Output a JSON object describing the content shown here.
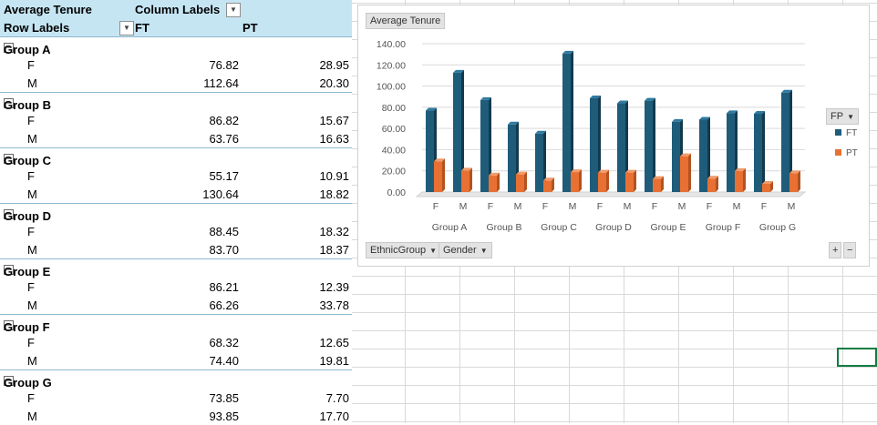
{
  "pivot": {
    "header1": {
      "label": "Average Tenure",
      "col_labels": "Column Labels"
    },
    "header2": {
      "row_labels": "Row Labels",
      "ft": "FT",
      "pt": "PT"
    },
    "groups": [
      {
        "name": "Group A",
        "rows": [
          {
            "g": "F",
            "ft": "76.82",
            "pt": "28.95"
          },
          {
            "g": "M",
            "ft": "112.64",
            "pt": "20.30"
          }
        ]
      },
      {
        "name": "Group B",
        "rows": [
          {
            "g": "F",
            "ft": "86.82",
            "pt": "15.67"
          },
          {
            "g": "M",
            "ft": "63.76",
            "pt": "16.63"
          }
        ]
      },
      {
        "name": "Group C",
        "rows": [
          {
            "g": "F",
            "ft": "55.17",
            "pt": "10.91"
          },
          {
            "g": "M",
            "ft": "130.64",
            "pt": "18.82"
          }
        ]
      },
      {
        "name": "Group D",
        "rows": [
          {
            "g": "F",
            "ft": "88.45",
            "pt": "18.32"
          },
          {
            "g": "M",
            "ft": "83.70",
            "pt": "18.37"
          }
        ]
      },
      {
        "name": "Group E",
        "rows": [
          {
            "g": "F",
            "ft": "86.21",
            "pt": "12.39"
          },
          {
            "g": "M",
            "ft": "66.26",
            "pt": "33.78"
          }
        ]
      },
      {
        "name": "Group F",
        "rows": [
          {
            "g": "F",
            "ft": "68.32",
            "pt": "12.65"
          },
          {
            "g": "M",
            "ft": "74.40",
            "pt": "19.81"
          }
        ]
      },
      {
        "name": "Group G",
        "rows": [
          {
            "g": "F",
            "ft": "73.85",
            "pt": "7.70"
          },
          {
            "g": "M",
            "ft": "93.85",
            "pt": "17.70"
          }
        ]
      }
    ]
  },
  "chart": {
    "title_button": "Average Tenure",
    "legend_button": "FP",
    "filter_buttons": [
      "EthnicGroup",
      "Gender"
    ],
    "zoom_plus": "+",
    "zoom_minus": "−",
    "colors": {
      "FT": "#1f5c7a",
      "PT": "#e87033"
    }
  },
  "chart_data": {
    "type": "bar",
    "categories": [
      "F",
      "M",
      "F",
      "M",
      "F",
      "M",
      "F",
      "M",
      "F",
      "M",
      "F",
      "M",
      "F",
      "M"
    ],
    "group_labels": [
      "Group A",
      "Group B",
      "Group C",
      "Group D",
      "Group E",
      "Group F",
      "Group G"
    ],
    "series": [
      {
        "name": "FT",
        "values": [
          76.82,
          112.64,
          86.82,
          63.76,
          55.17,
          130.64,
          88.45,
          83.7,
          86.21,
          66.26,
          68.32,
          74.4,
          73.85,
          93.85
        ]
      },
      {
        "name": "PT",
        "values": [
          28.95,
          20.3,
          15.67,
          16.63,
          10.91,
          18.82,
          18.32,
          18.37,
          12.39,
          33.78,
          12.65,
          19.81,
          7.7,
          17.7
        ]
      }
    ],
    "yticks": [
      "0.00",
      "20.00",
      "40.00",
      "60.00",
      "80.00",
      "100.00",
      "120.00",
      "140.00"
    ],
    "ylim": [
      0,
      140
    ],
    "grid": true,
    "legend": "right"
  }
}
